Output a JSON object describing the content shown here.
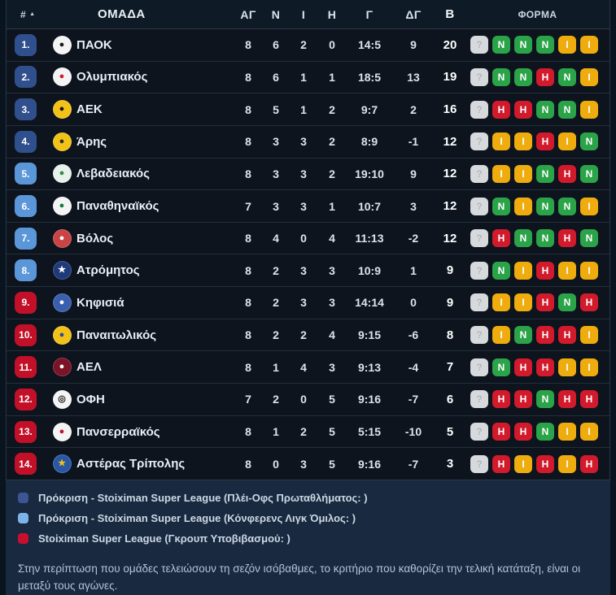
{
  "table": {
    "columns": {
      "pos": "#",
      "team": "ΟΜΑΔΑ",
      "played": "ΑΓ",
      "wins": "Ν",
      "draws": "Ι",
      "losses": "Η",
      "goals": "Γ",
      "diff": "ΔΓ",
      "points": "Β",
      "form": "ΦΟΡΜΑ"
    },
    "rows": [
      {
        "pos": "1.",
        "team": "ΠΑΟΚ",
        "played": "8",
        "wins": "6",
        "draws": "2",
        "losses": "0",
        "goals": "14:5",
        "diff": "9",
        "points": "20",
        "zone": "playoffs",
        "form": [
          "?",
          "Ν",
          "Ν",
          "Ν",
          "Ι",
          "Ι"
        ],
        "logo": {
          "bg": "#f4f4f4",
          "fg": "#16181a",
          "glyph": "●"
        }
      },
      {
        "pos": "2.",
        "team": "Ολυμπιακός",
        "played": "8",
        "wins": "6",
        "draws": "1",
        "losses": "1",
        "goals": "18:5",
        "diff": "13",
        "points": "19",
        "zone": "playoffs",
        "form": [
          "?",
          "Ν",
          "Ν",
          "Η",
          "Ν",
          "Ι"
        ],
        "logo": {
          "bg": "#f4f4f4",
          "fg": "#d21a2b",
          "glyph": "●"
        }
      },
      {
        "pos": "3.",
        "team": "ΑΕΚ",
        "played": "8",
        "wins": "5",
        "draws": "1",
        "losses": "2",
        "goals": "9:7",
        "diff": "2",
        "points": "16",
        "zone": "playoffs",
        "form": [
          "?",
          "Η",
          "Η",
          "Ν",
          "Ν",
          "Ι"
        ],
        "logo": {
          "bg": "#f2c218",
          "fg": "#141414",
          "glyph": "●"
        }
      },
      {
        "pos": "4.",
        "team": "Άρης",
        "played": "8",
        "wins": "3",
        "draws": "3",
        "losses": "2",
        "goals": "8:9",
        "diff": "-1",
        "points": "12",
        "zone": "playoffs",
        "form": [
          "?",
          "Ι",
          "Ι",
          "Η",
          "Ι",
          "Ν"
        ],
        "logo": {
          "bg": "#f2c218",
          "fg": "#2a2a2a",
          "glyph": "●"
        }
      },
      {
        "pos": "5.",
        "team": "Λεβαδειακός",
        "played": "8",
        "wins": "3",
        "draws": "3",
        "losses": "2",
        "goals": "19:10",
        "diff": "9",
        "points": "12",
        "zone": "conference",
        "form": [
          "?",
          "Ι",
          "Ι",
          "Ν",
          "Η",
          "Ν"
        ],
        "logo": {
          "bg": "#e8f2ea",
          "fg": "#2f8a4e",
          "glyph": "●"
        }
      },
      {
        "pos": "6.",
        "team": "Παναθηναϊκός",
        "played": "7",
        "wins": "3",
        "draws": "3",
        "losses": "1",
        "goals": "10:7",
        "diff": "3",
        "points": "12",
        "zone": "conference",
        "form": [
          "?",
          "Ν",
          "Ι",
          "Ν",
          "Ν",
          "Ι"
        ],
        "logo": {
          "bg": "#f4f4f4",
          "fg": "#0f7a3a",
          "glyph": "●"
        }
      },
      {
        "pos": "7.",
        "team": "Βόλος",
        "played": "8",
        "wins": "4",
        "draws": "0",
        "losses": "4",
        "goals": "11:13",
        "diff": "-2",
        "points": "12",
        "zone": "conference",
        "form": [
          "?",
          "Η",
          "Ν",
          "Ν",
          "Η",
          "Ν"
        ],
        "logo": {
          "bg": "#c94444",
          "fg": "#ffffff",
          "glyph": "●"
        }
      },
      {
        "pos": "8.",
        "team": "Ατρόμητος",
        "played": "8",
        "wins": "2",
        "draws": "3",
        "losses": "3",
        "goals": "10:9",
        "diff": "1",
        "points": "9",
        "zone": "conference",
        "form": [
          "?",
          "Ν",
          "Ι",
          "Η",
          "Ι",
          "Ι"
        ],
        "logo": {
          "bg": "#1f3a7a",
          "fg": "#ffffff",
          "glyph": "★"
        }
      },
      {
        "pos": "9.",
        "team": "Κηφισιά",
        "played": "8",
        "wins": "2",
        "draws": "3",
        "losses": "3",
        "goals": "14:14",
        "diff": "0",
        "points": "9",
        "zone": "relegation",
        "form": [
          "?",
          "Ι",
          "Ι",
          "Η",
          "Ν",
          "Η"
        ],
        "logo": {
          "bg": "#3a5fae",
          "fg": "#ffffff",
          "glyph": "●"
        }
      },
      {
        "pos": "10.",
        "team": "Παναιτωλικός",
        "played": "8",
        "wins": "2",
        "draws": "2",
        "losses": "4",
        "goals": "9:15",
        "diff": "-6",
        "points": "8",
        "zone": "relegation",
        "form": [
          "?",
          "Ι",
          "Ν",
          "Η",
          "Η",
          "Ι"
        ],
        "logo": {
          "bg": "#f2c218",
          "fg": "#2a4a9c",
          "glyph": "●"
        }
      },
      {
        "pos": "11.",
        "team": "ΑΕΛ",
        "played": "8",
        "wins": "1",
        "draws": "4",
        "losses": "3",
        "goals": "9:13",
        "diff": "-4",
        "points": "7",
        "zone": "relegation",
        "form": [
          "?",
          "Ν",
          "Η",
          "Η",
          "Ι",
          "Ι"
        ],
        "logo": {
          "bg": "#7a1426",
          "fg": "#ffffff",
          "glyph": "●"
        }
      },
      {
        "pos": "12.",
        "team": "ΟΦΗ",
        "played": "7",
        "wins": "2",
        "draws": "0",
        "losses": "5",
        "goals": "9:16",
        "diff": "-7",
        "points": "6",
        "zone": "relegation",
        "form": [
          "?",
          "Η",
          "Η",
          "Ν",
          "Η",
          "Η"
        ],
        "logo": {
          "bg": "#f4f4f4",
          "fg": "#1a1a1a",
          "glyph": "◎"
        }
      },
      {
        "pos": "13.",
        "team": "Πανσερραϊκός",
        "played": "8",
        "wins": "1",
        "draws": "2",
        "losses": "5",
        "goals": "5:15",
        "diff": "-10",
        "points": "5",
        "zone": "relegation",
        "form": [
          "?",
          "Η",
          "Η",
          "Ν",
          "Ι",
          "Ι"
        ],
        "logo": {
          "bg": "#f4f4f4",
          "fg": "#c8102e",
          "glyph": "●"
        }
      },
      {
        "pos": "14.",
        "team": "Αστέρας Τρίπολης",
        "played": "8",
        "wins": "0",
        "draws": "3",
        "losses": "5",
        "goals": "9:16",
        "diff": "-7",
        "points": "3",
        "zone": "relegation",
        "form": [
          "?",
          "Η",
          "Ι",
          "Η",
          "Ι",
          "Η"
        ],
        "logo": {
          "bg": "#2a57a5",
          "fg": "#f2c218",
          "glyph": "★"
        }
      }
    ]
  },
  "legend": [
    {
      "color": "#3d5693",
      "label": "Πρόκριση - Stoiximan Super League (Πλέι-Οφς Πρωταθλήματος: )"
    },
    {
      "color": "#7db3e8",
      "label": "Πρόκριση - Stoiximan Super League (Κόνφερενς Λιγκ Όμιλος: )"
    },
    {
      "color": "#c8102e",
      "label": "Stoiximan Super League (Γκρουπ Υποβιβασμού: )"
    }
  ],
  "note": "Στην περίπτωση που ομάδες τελειώσουν τη σεζόν ισόβαθμες, το κριτήριο που καθορίζει την τελική κατάταξη, είναι οι μεταξύ τους αγώνες.",
  "form_colors": {
    "win": "#2ba348",
    "draw": "#efac0e",
    "loss": "#d11a2b",
    "unknown": "#d7dadd"
  },
  "zone_colors": {
    "playoffs": "#30508d",
    "conference": "#5b97d8",
    "relegation": "#c21029"
  }
}
